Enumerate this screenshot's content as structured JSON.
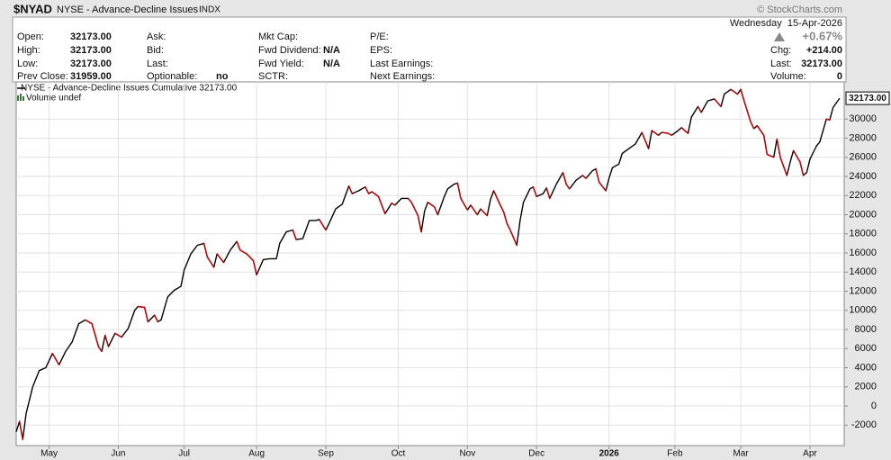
{
  "header": {
    "symbol": "$NYAD",
    "name": "NYSE - Advance-Decline Issues",
    "exchange": "INDX",
    "brand": "© StockCharts.com",
    "date": "Wednesday  15-Apr-2026",
    "columns": [
      [
        {
          "label": "Open:",
          "value": "32173.00"
        },
        {
          "label": "High:",
          "value": "32173.00"
        },
        {
          "label": "Low:",
          "value": "32173.00"
        },
        {
          "label": "Prev Close:",
          "value": "31959.00"
        }
      ],
      [
        {
          "label": "Ask:"
        },
        {
          "label": "Bid:"
        },
        {
          "label": "Last:"
        },
        {
          "label": "Optionable:",
          "value": "no"
        }
      ],
      [
        {
          "label": "Mkt Cap:"
        },
        {
          "label": "Fwd Dividend:",
          "value": "N/A"
        },
        {
          "label": "Fwd Yield:",
          "value": "N/A"
        },
        {
          "label": "SCTR:"
        }
      ],
      [
        {
          "label": "P/E:"
        },
        {
          "label": "EPS:"
        },
        {
          "label": "Last Earnings:"
        },
        {
          "label": "Next Earnings:"
        }
      ]
    ],
    "change_pct": "+0.67%",
    "right": [
      {
        "label": "Chg:",
        "value": "+214.00"
      },
      {
        "label": "Last:",
        "value": "32173.00"
      },
      {
        "label": "Volume:",
        "value": "0"
      }
    ]
  },
  "chart_data": {
    "type": "line",
    "volume_note": "Volume undef",
    "last_value_label": "32173.00",
    "up_color": "#000000",
    "down_color": "#cc0000",
    "grid": true,
    "xlim": [
      0,
      251.4
    ],
    "xticks": [
      {
        "value": 10,
        "label": "May"
      },
      {
        "value": 31,
        "label": "Jun"
      },
      {
        "value": 51,
        "label": "Jul"
      },
      {
        "value": 73,
        "label": "Aug"
      },
      {
        "value": 94,
        "label": "Sep"
      },
      {
        "value": 116,
        "label": "Oct"
      },
      {
        "value": 137,
        "label": "Nov"
      },
      {
        "value": 158,
        "label": "Dec"
      },
      {
        "value": 180,
        "label": "2026"
      },
      {
        "value": 200,
        "label": "Feb"
      },
      {
        "value": 220,
        "label": "Mar"
      },
      {
        "value": 241,
        "label": "Apr"
      }
    ],
    "ylim": [
      -4140,
      33880
    ],
    "yticks": [
      -2000,
      0,
      2000,
      4000,
      6000,
      8000,
      10000,
      12000,
      14000,
      16000,
      18000,
      20000,
      22000,
      24000,
      26000,
      28000,
      30000
    ],
    "series": [
      {
        "name": "NYSE - Advance-Decline Issues Cumulative 32173.00",
        "color": "#000000",
        "x": [
          0,
          1,
          2,
          3,
          5,
          7,
          9,
          11,
          13,
          15,
          17,
          19,
          21,
          23,
          25,
          26,
          27,
          28,
          30,
          32,
          34,
          36,
          37,
          39,
          40,
          42,
          43,
          44,
          46,
          48,
          50,
          51,
          53,
          55,
          57,
          58,
          60,
          61,
          63,
          65,
          67,
          68,
          70,
          72,
          73,
          75,
          77,
          79,
          80,
          82,
          84,
          85,
          87,
          89,
          91,
          92,
          94,
          95,
          97,
          99,
          101,
          102,
          104,
          106,
          107,
          108,
          110,
          112,
          114,
          115,
          117,
          119,
          120,
          122,
          123,
          124,
          125,
          127,
          128,
          130,
          131,
          133,
          134,
          135,
          137,
          138,
          140,
          141,
          143,
          144,
          145,
          147,
          148,
          149,
          150,
          152,
          153,
          154,
          156,
          157,
          158,
          160,
          161,
          162,
          164,
          166,
          167,
          168,
          170,
          172,
          173,
          175,
          176,
          177,
          179,
          180,
          181,
          183,
          184,
          186,
          188,
          190,
          192,
          193,
          195,
          196,
          198,
          199,
          201,
          202,
          204,
          205,
          207,
          208,
          210,
          212,
          214,
          215,
          217,
          219,
          220,
          221,
          223,
          224,
          225,
          227,
          228,
          230,
          231,
          232,
          234,
          235,
          236,
          238,
          239,
          240,
          241,
          243,
          244,
          246,
          247,
          248,
          250
        ],
        "values": [
          -2700,
          -1600,
          -3500,
          -800,
          2000,
          3700,
          4000,
          5500,
          4300,
          5700,
          6700,
          8600,
          9000,
          8600,
          6200,
          5700,
          7400,
          6200,
          7600,
          7200,
          8100,
          10000,
          10400,
          10300,
          8800,
          9500,
          8800,
          9000,
          11400,
          12100,
          12500,
          14200,
          15900,
          16800,
          17000,
          15600,
          14500,
          15900,
          15000,
          16300,
          17200,
          16300,
          15900,
          15200,
          13700,
          15300,
          15400,
          15400,
          17000,
          18200,
          18400,
          17400,
          17500,
          19400,
          19400,
          19500,
          18400,
          19100,
          20600,
          21100,
          23000,
          22200,
          22500,
          22900,
          22200,
          22400,
          21900,
          20100,
          21200,
          21000,
          21700,
          21700,
          21300,
          19900,
          18200,
          20400,
          21300,
          20800,
          20000,
          21900,
          22700,
          23200,
          23300,
          21700,
          20500,
          21000,
          20000,
          20600,
          19900,
          21600,
          22500,
          21000,
          20300,
          19100,
          18400,
          16800,
          19400,
          21300,
          22700,
          22900,
          21900,
          22200,
          22800,
          21700,
          23200,
          24400,
          23200,
          22700,
          23600,
          24100,
          23800,
          24600,
          24800,
          23400,
          22500,
          23800,
          24900,
          25300,
          26400,
          26900,
          27400,
          28600,
          26900,
          28800,
          28300,
          28600,
          28500,
          28300,
          28800,
          29100,
          28500,
          30200,
          31300,
          30700,
          31900,
          32100,
          31300,
          32600,
          33100,
          32600,
          33100,
          31900,
          29700,
          29000,
          29300,
          28300,
          26300,
          26000,
          27900,
          26000,
          24100,
          25500,
          26700,
          25500,
          24100,
          24400,
          25800,
          27200,
          27600,
          30000,
          29900,
          31200,
          32173
        ]
      }
    ]
  }
}
